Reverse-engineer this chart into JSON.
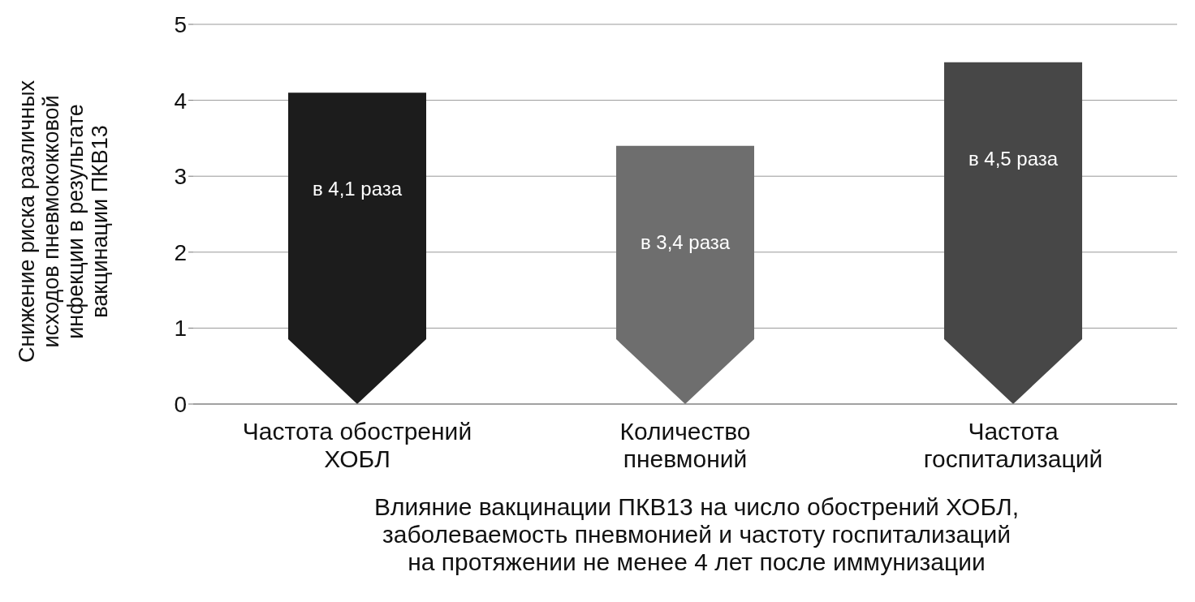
{
  "chart_data": {
    "type": "bar",
    "xlabel": "Влияние вакцинации ПКВ13 на число обострений ХОБЛ, заболеваемость пневмонией и частоту госпитализаций на протяжении не менее 4 лет после иммунизации",
    "ylabel": "Снижение риска различных исходов пневмококковой инфекции в результате вакцинации ПКВ13",
    "categories": [
      "Частота обострений ХОБЛ",
      "Количество пневмоний",
      "Частота госпитализаций"
    ],
    "values": [
      4.1,
      3.4,
      4.5
    ],
    "colors": [
      "#1c1c1c",
      "#6e6e6e",
      "#474747"
    ],
    "value_labels": [
      "в 4,1 раза",
      "в 3,4 раза",
      "в 4,5 раза"
    ],
    "ylim": [
      0,
      5
    ],
    "yticks": [
      0,
      1,
      2,
      3,
      4,
      5
    ],
    "grid": "y"
  }
}
